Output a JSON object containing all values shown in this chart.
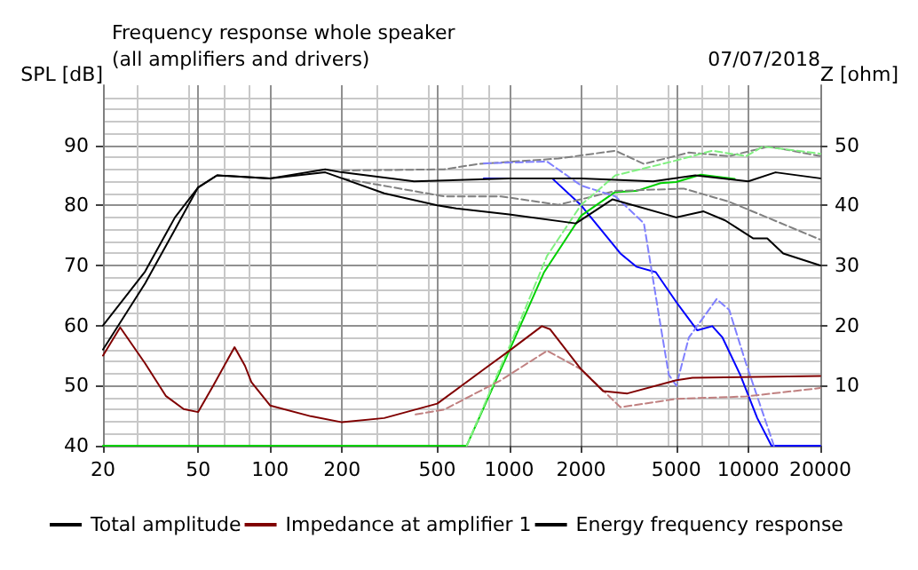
{
  "chart_data": {
    "type": "line",
    "title": "Frequency response whole speaker",
    "subtitle": "(all amplifiers and drivers)",
    "annotations": [
      "07/07/2018"
    ],
    "ylabel": "SPL [dB]",
    "y2label": "Z [ohm]",
    "log": "x",
    "xlim": [
      20,
      20000
    ],
    "xticks": [
      20,
      50,
      100,
      200,
      500,
      1000,
      2000,
      5000,
      10000,
      20000
    ],
    "ylim": [
      40,
      100
    ],
    "yticks": [
      40,
      50,
      60,
      70,
      80,
      90
    ],
    "y2lim": [
      0,
      60
    ],
    "y2ticks": [
      10,
      20,
      30,
      40,
      50
    ],
    "grid": true,
    "legend": "bottom",
    "marker": "none",
    "series": [
      {
        "name": "Total amplitude",
        "color": "#000000",
        "x": [
          20,
          30,
          40,
          50,
          60,
          100,
          170,
          200,
          400,
          1000,
          2000,
          4000,
          6000,
          10000,
          13000,
          20000
        ],
        "values": [
          56,
          67,
          76,
          83,
          85,
          84.5,
          86,
          85.5,
          84,
          84.5,
          84.5,
          84,
          85,
          84,
          85.5,
          84.5
        ]
      },
      {
        "color": "#0000ff",
        "x": [
          783,
          1512,
          2000,
          2917,
          3400,
          4100,
          5000,
          6120,
          7070,
          7800,
          9250,
          10900,
          12500,
          20000
        ],
        "values": [
          84.5,
          84.5,
          80,
          72,
          69.8,
          68.9,
          63.9,
          59.2,
          59.9,
          58,
          51.8,
          44.6,
          40,
          40
        ]
      },
      {
        "color": "#00d000",
        "x": [
          20,
          664,
          1000,
          1400,
          2000,
          2770,
          3400,
          4300,
          5000,
          6320,
          8770
        ],
        "values": [
          40,
          40,
          55.8,
          68.9,
          78.3,
          82.2,
          82.4,
          83.7,
          83.9,
          85.1,
          84.4
        ]
      },
      {
        "name": "Impedance at amplifier 1",
        "color": "#800000",
        "axis": "y2",
        "x": [
          20,
          23.6,
          30,
          36.6,
          43.5,
          50,
          58,
          71,
          78.5,
          83.5,
          100,
          148,
          200,
          300,
          500,
          783,
          1000,
          1370,
          1480,
          2000,
          2470,
          3120,
          5000,
          5840,
          20000
        ],
        "values": [
          15,
          19.7,
          13.7,
          8.3,
          6.1,
          5.6,
          10.1,
          16.4,
          13.3,
          10.6,
          6.7,
          4.9,
          3.9,
          4.6,
          7,
          12.7,
          15.8,
          19.9,
          19.4,
          12.7,
          9.1,
          8.7,
          10.9,
          11.3,
          11.6
        ]
      },
      {
        "name": "Energy frequency response",
        "color": "#000000",
        "x": [
          20,
          30,
          40,
          50,
          60,
          100,
          170,
          200,
          300,
          500,
          600,
          1000,
          1900,
          2700,
          5000,
          6500,
          8000,
          10500,
          12000,
          14000,
          20000
        ],
        "values": [
          60,
          69,
          78,
          83,
          85,
          84.5,
          85.5,
          84.5,
          82,
          80,
          79.5,
          78.5,
          77,
          81,
          78,
          79,
          77.5,
          74.5,
          74.5,
          72,
          70
        ]
      },
      {
        "color": "#808080",
        "line_style": "dashed",
        "x": [
          200,
          534,
          745,
          1606,
          2780,
          3660,
          5640,
          8320,
          12200,
          20000
        ],
        "values": [
          85.8,
          86,
          86.9,
          87.8,
          89.1,
          86.9,
          88.8,
          88.2,
          89.8,
          88.2
        ]
      },
      {
        "color": "#808080",
        "line_style": "dashed",
        "x": [
          200,
          534,
          923,
          1606,
          2780,
          5370,
          8320,
          11500,
          20000
        ],
        "values": [
          84.5,
          81.5,
          81.5,
          80.1,
          82.4,
          82.8,
          80.6,
          78.3,
          74.3
        ]
      },
      {
        "color": "#8080ff",
        "line_style": "dashed",
        "x": [
          783,
          1440,
          2000,
          2780,
          3660,
          4300,
          4650,
          5000,
          5640,
          7370,
          8320,
          9800,
          12800
        ],
        "values": [
          87,
          87.3,
          83.3,
          81.5,
          77,
          59.9,
          51.8,
          50,
          58,
          64.4,
          62.6,
          53.6,
          40
        ]
      },
      {
        "color": "#80f080",
        "line_style": "dashed",
        "x": [
          664,
          1040,
          1440,
          2000,
          2780,
          4800,
          7070,
          9800,
          11500,
          20000
        ],
        "values": [
          40,
          58,
          71.6,
          80.1,
          85,
          87.3,
          89.1,
          88.2,
          89.8,
          88.6
        ]
      },
      {
        "color": "#c08080",
        "line_style": "dashed",
        "axis": "y2",
        "x": [
          406,
          534,
          923,
          1440,
          2000,
          2920,
          5000,
          9800,
          20000
        ],
        "values": [
          5.2,
          6,
          10.9,
          15.8,
          12.7,
          6.4,
          7.8,
          8.2,
          9.6
        ]
      }
    ]
  }
}
